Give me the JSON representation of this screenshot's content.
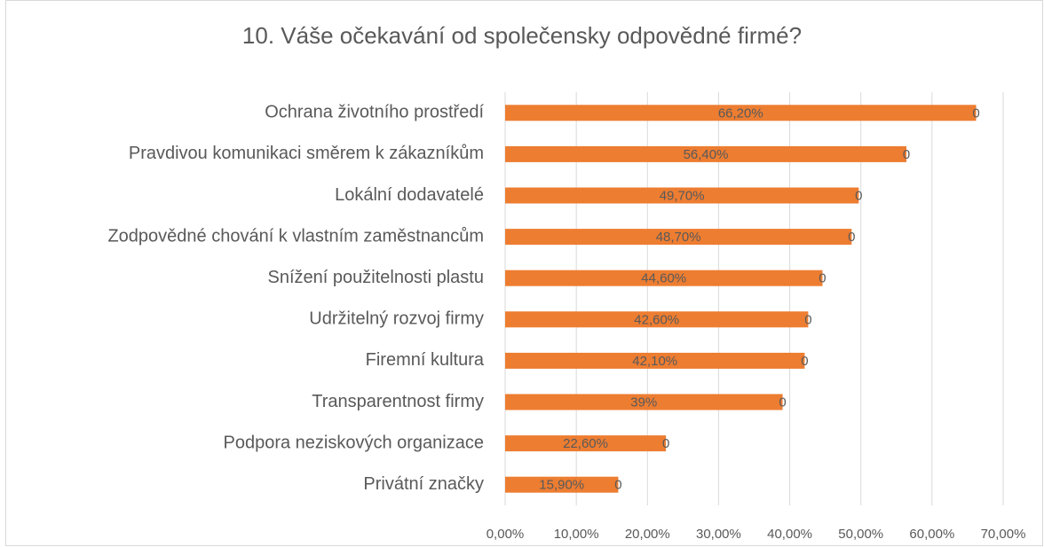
{
  "chart_data": {
    "type": "hbar",
    "title": "10.  Váše očekavání od společensky odpovědné firmé?",
    "categories": [
      "Ochrana životního prostředí",
      "Pravdivou komunikaci směrem k zákazníkům",
      "Lokální dodavatelé",
      "Zodpovědné chování k vlastním zaměstnancům",
      "Snížení použitelnosti plastu",
      "Udržitelný rozvoj firmy",
      "Firemní kultura",
      "Transparentnost firmy",
      "Podpora neziskových organizace",
      "Privátní značky"
    ],
    "series": [
      {
        "color": "#ed7d31",
        "values": [
          66.2,
          56.4,
          49.7,
          48.7,
          44.6,
          42.6,
          42.1,
          39,
          22.6,
          15.9
        ],
        "value_labels": [
          "66,20%",
          "56,40%",
          "49,70%",
          "48,70%",
          "44,60%",
          "42,60%",
          "42,10%",
          "39%",
          "22,60%",
          "15,90%"
        ]
      },
      {
        "color": "#a5a5a5",
        "values": [
          0,
          0,
          0,
          0,
          0,
          0,
          0,
          0,
          0,
          0
        ]
      }
    ],
    "xlim": [
      0,
      70
    ],
    "xticks": [
      {
        "value": 0,
        "label": "0,00%"
      },
      {
        "value": 10,
        "label": "10,00%"
      },
      {
        "value": 20,
        "label": "20,00%"
      },
      {
        "value": 30,
        "label": "30,00%"
      },
      {
        "value": 40,
        "label": "40,00%"
      },
      {
        "value": 50,
        "label": "50,00%"
      },
      {
        "value": 60,
        "label": "60,00%"
      },
      {
        "value": 70,
        "label": "70,00%"
      }
    ],
    "grid": true
  }
}
